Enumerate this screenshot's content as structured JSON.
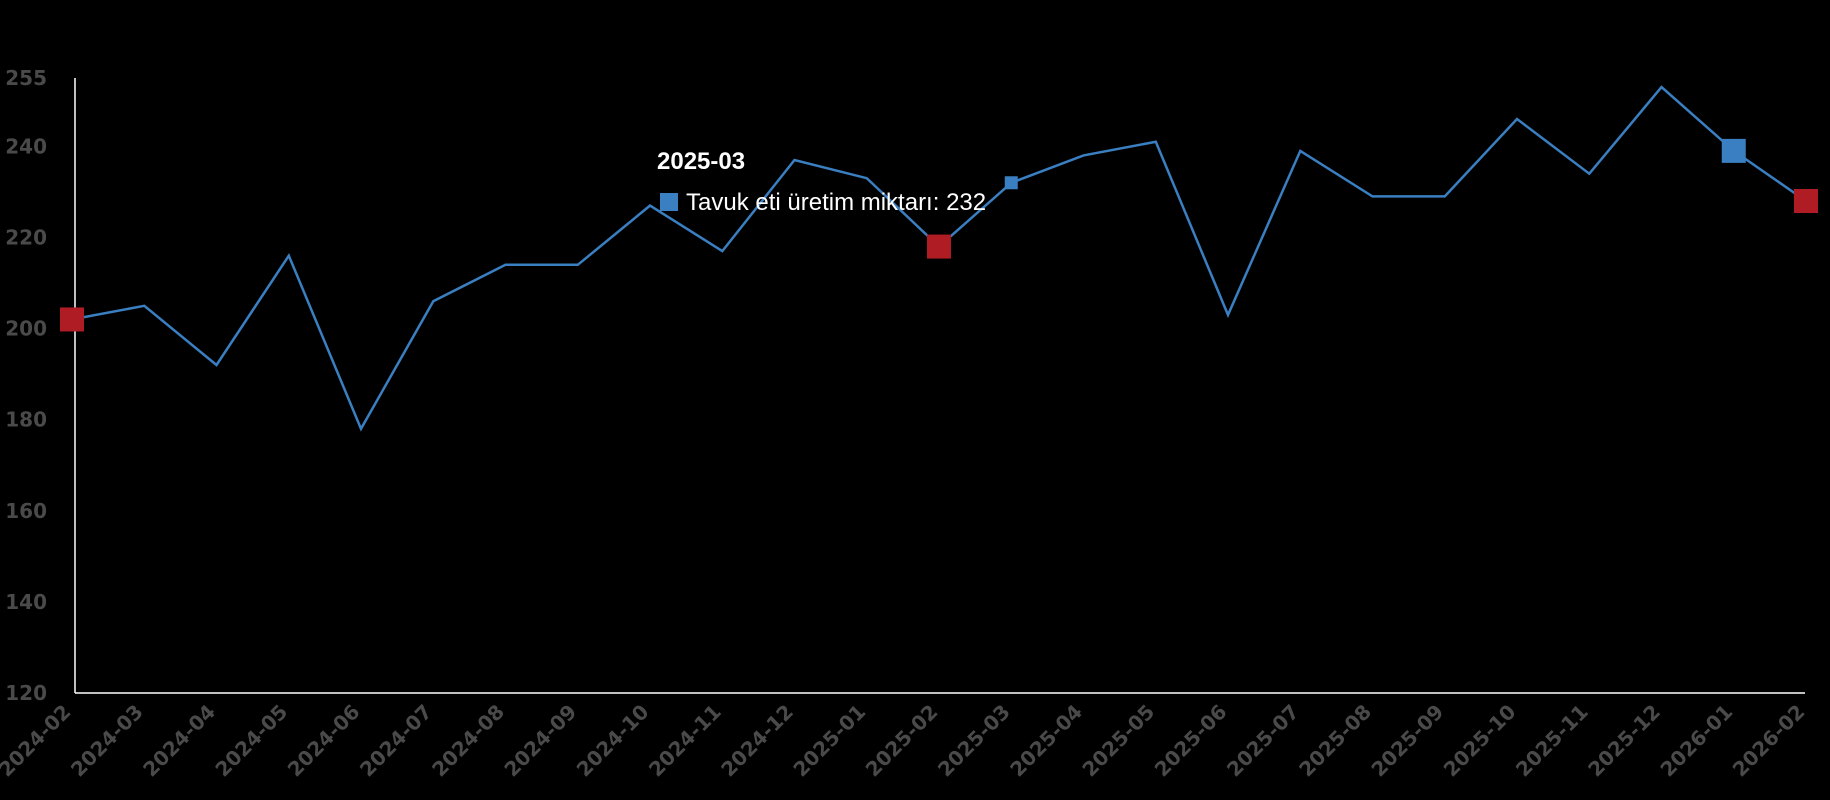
{
  "colors": {
    "background": "#000000",
    "line": "#3a7fc1",
    "marker_high": "#3a7fc1",
    "marker_low": "#b01c23",
    "axis": "#ffffff",
    "tick_text": "#4a4a4a"
  },
  "chart_data": {
    "type": "line",
    "title": "",
    "xlabel": "",
    "ylabel": "",
    "ylim": [
      120,
      255
    ],
    "yticks": [
      120,
      140,
      160,
      180,
      200,
      220,
      240,
      255
    ],
    "grid": false,
    "categories": [
      "2024-02",
      "2024-03",
      "2024-04",
      "2024-05",
      "2024-06",
      "2024-07",
      "2024-08",
      "2024-09",
      "2024-10",
      "2024-11",
      "2024-12",
      "2025-01",
      "2025-02",
      "2025-03",
      "2025-04",
      "2025-05",
      "2025-06",
      "2025-07",
      "2025-08",
      "2025-09",
      "2025-10",
      "2025-11",
      "2025-12",
      "2026-01",
      "2026-02"
    ],
    "series": [
      {
        "name": "Tavuk eti üretim miktarı",
        "values": [
          202,
          205,
          192,
          216,
          178,
          206,
          214,
          214,
          227,
          217,
          237,
          233,
          218,
          232,
          238,
          241,
          203,
          239,
          229,
          229,
          246,
          234,
          253,
          239,
          228
        ]
      }
    ],
    "highlight_markers": [
      {
        "category": "2024-02",
        "kind": "low"
      },
      {
        "category": "2025-02",
        "kind": "low"
      },
      {
        "category": "2026-01",
        "kind": "high"
      },
      {
        "category": "2026-02",
        "kind": "low"
      }
    ],
    "active_point": {
      "category": "2025-03"
    },
    "tooltip": {
      "title": "2025-03",
      "label": "Tavuk eti üretim miktarı",
      "value": "232"
    }
  }
}
